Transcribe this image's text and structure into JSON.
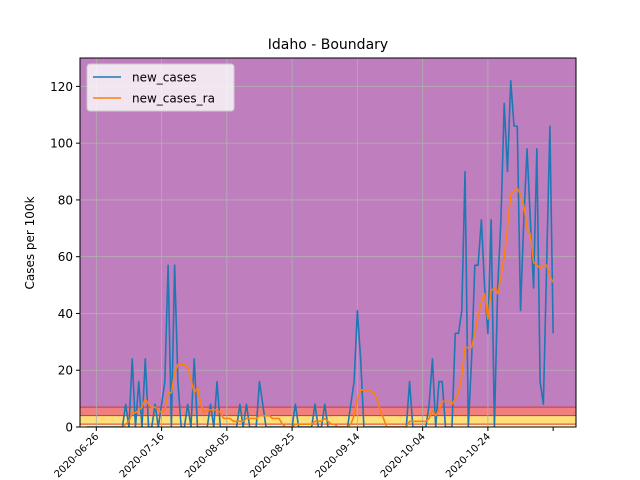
{
  "chart_data": {
    "type": "line",
    "title": "Idaho - Boundary",
    "xlabel": "",
    "ylabel": "Cases per 100k",
    "x_start": "2020-06-26",
    "x_ticks": [
      "2020-06-26",
      "2020-07-16",
      "2020-08-05",
      "2020-08-25",
      "2020-09-14",
      "2020-10-04",
      "2020-10-24"
    ],
    "ylim": [
      0,
      130
    ],
    "y_ticks": [
      0,
      20,
      40,
      60,
      80,
      100,
      120
    ],
    "grid": true,
    "legend_position": "top-left",
    "bands": [
      {
        "from": 0,
        "to": 1,
        "color": "#fffaaa"
      },
      {
        "from": 1,
        "to": 4,
        "color": "#fde07a"
      },
      {
        "from": 4,
        "to": 7,
        "color": "#f08080"
      },
      {
        "from": 7,
        "to": 130,
        "color": "#bf7fbf"
      }
    ],
    "band_line_color": "#e03030",
    "series": [
      {
        "name": "new_cases",
        "color": "#1f77b4",
        "points": [
          [
            "2020-06-23",
            0
          ],
          [
            "2020-06-30",
            0
          ],
          [
            "2020-07-01",
            0
          ],
          [
            "2020-07-02",
            0
          ],
          [
            "2020-07-03",
            0
          ],
          [
            "2020-07-04",
            0
          ],
          [
            "2020-07-05",
            8
          ],
          [
            "2020-07-06",
            0
          ],
          [
            "2020-07-07",
            24
          ],
          [
            "2020-07-08",
            0
          ],
          [
            "2020-07-09",
            16
          ],
          [
            "2020-07-10",
            0
          ],
          [
            "2020-07-11",
            24
          ],
          [
            "2020-07-12",
            0
          ],
          [
            "2020-07-13",
            0
          ],
          [
            "2020-07-14",
            8
          ],
          [
            "2020-07-15",
            0
          ],
          [
            "2020-07-16",
            8
          ],
          [
            "2020-07-17",
            16
          ],
          [
            "2020-07-18",
            57
          ],
          [
            "2020-07-19",
            0
          ],
          [
            "2020-07-20",
            57
          ],
          [
            "2020-07-21",
            16
          ],
          [
            "2020-07-22",
            0
          ],
          [
            "2020-07-23",
            0
          ],
          [
            "2020-07-24",
            8
          ],
          [
            "2020-07-25",
            0
          ],
          [
            "2020-07-26",
            24
          ],
          [
            "2020-07-27",
            0
          ],
          [
            "2020-07-28",
            0
          ],
          [
            "2020-07-29",
            0
          ],
          [
            "2020-07-30",
            0
          ],
          [
            "2020-07-31",
            8
          ],
          [
            "2020-08-01",
            0
          ],
          [
            "2020-08-02",
            16
          ],
          [
            "2020-08-03",
            0
          ],
          [
            "2020-08-04",
            0
          ],
          [
            "2020-08-05",
            0
          ],
          [
            "2020-08-06",
            0
          ],
          [
            "2020-08-07",
            0
          ],
          [
            "2020-08-08",
            0
          ],
          [
            "2020-08-09",
            8
          ],
          [
            "2020-08-10",
            0
          ],
          [
            "2020-08-11",
            8
          ],
          [
            "2020-08-12",
            0
          ],
          [
            "2020-08-13",
            0
          ],
          [
            "2020-08-14",
            0
          ],
          [
            "2020-08-15",
            16
          ],
          [
            "2020-08-16",
            8
          ],
          [
            "2020-08-17",
            0
          ],
          [
            "2020-08-18",
            0
          ],
          [
            "2020-08-19",
            0
          ],
          [
            "2020-08-20",
            0
          ],
          [
            "2020-08-21",
            0
          ],
          [
            "2020-08-22",
            0
          ],
          [
            "2020-08-23",
            0
          ],
          [
            "2020-08-24",
            0
          ],
          [
            "2020-08-25",
            0
          ],
          [
            "2020-08-26",
            8
          ],
          [
            "2020-08-27",
            0
          ],
          [
            "2020-08-28",
            0
          ],
          [
            "2020-08-29",
            0
          ],
          [
            "2020-08-30",
            0
          ],
          [
            "2020-08-31",
            0
          ],
          [
            "2020-09-01",
            8
          ],
          [
            "2020-09-02",
            0
          ],
          [
            "2020-09-03",
            0
          ],
          [
            "2020-09-04",
            8
          ],
          [
            "2020-09-05",
            0
          ],
          [
            "2020-09-06",
            0
          ],
          [
            "2020-09-07",
            0
          ],
          [
            "2020-09-08",
            0
          ],
          [
            "2020-09-09",
            0
          ],
          [
            "2020-09-10",
            0
          ],
          [
            "2020-09-11",
            0
          ],
          [
            "2020-09-12",
            8
          ],
          [
            "2020-09-13",
            16
          ],
          [
            "2020-09-14",
            41
          ],
          [
            "2020-09-15",
            24
          ],
          [
            "2020-09-16",
            0
          ],
          [
            "2020-09-17",
            0
          ],
          [
            "2020-09-18",
            0
          ],
          [
            "2020-09-19",
            0
          ],
          [
            "2020-09-20",
            0
          ],
          [
            "2020-09-21",
            0
          ],
          [
            "2020-09-22",
            0
          ],
          [
            "2020-09-23",
            0
          ],
          [
            "2020-09-24",
            0
          ],
          [
            "2020-09-25",
            0
          ],
          [
            "2020-09-26",
            0
          ],
          [
            "2020-09-27",
            0
          ],
          [
            "2020-09-28",
            0
          ],
          [
            "2020-09-29",
            0
          ],
          [
            "2020-09-30",
            16
          ],
          [
            "2020-10-01",
            0
          ],
          [
            "2020-10-02",
            0
          ],
          [
            "2020-10-03",
            0
          ],
          [
            "2020-10-04",
            0
          ],
          [
            "2020-10-05",
            0
          ],
          [
            "2020-10-06",
            8
          ],
          [
            "2020-10-07",
            24
          ],
          [
            "2020-10-08",
            0
          ],
          [
            "2020-10-09",
            16
          ],
          [
            "2020-10-10",
            16
          ],
          [
            "2020-10-11",
            0
          ],
          [
            "2020-10-12",
            0
          ],
          [
            "2020-10-13",
            0
          ],
          [
            "2020-10-14",
            33
          ],
          [
            "2020-10-15",
            33
          ],
          [
            "2020-10-16",
            41
          ],
          [
            "2020-10-17",
            90
          ],
          [
            "2020-10-18",
            0
          ],
          [
            "2020-10-19",
            24
          ],
          [
            "2020-10-20",
            57
          ],
          [
            "2020-10-21",
            57
          ],
          [
            "2020-10-22",
            73
          ],
          [
            "2020-10-23",
            49
          ],
          [
            "2020-10-24",
            33
          ],
          [
            "2020-10-25",
            73
          ],
          [
            "2020-10-26",
            0
          ],
          [
            "2020-10-27",
            49
          ],
          [
            "2020-10-28",
            73
          ],
          [
            "2020-10-29",
            114
          ],
          [
            "2020-10-30",
            90
          ],
          [
            "2020-10-31",
            122
          ],
          [
            "2020-11-01",
            106
          ],
          [
            "2020-11-02",
            106
          ],
          [
            "2020-11-03",
            41
          ],
          [
            "2020-11-04",
            73
          ],
          [
            "2020-11-05",
            98
          ],
          [
            "2020-11-06",
            73
          ],
          [
            "2020-11-07",
            49
          ],
          [
            "2020-11-08",
            98
          ],
          [
            "2020-11-09",
            16
          ],
          [
            "2020-11-10",
            8
          ],
          [
            "2020-11-11",
            57
          ],
          [
            "2020-11-12",
            106
          ],
          [
            "2020-11-13",
            33
          ]
        ]
      },
      {
        "name": "new_cases_ra",
        "color": "#ff7f0e",
        "points": [
          [
            "2020-07-03",
            0
          ],
          [
            "2020-07-04",
            0
          ],
          [
            "2020-07-05",
            1
          ],
          [
            "2020-07-06",
            2
          ],
          [
            "2020-07-07",
            5
          ],
          [
            "2020-07-08",
            5
          ],
          [
            "2020-07-09",
            6
          ],
          [
            "2020-07-10",
            7
          ],
          [
            "2020-07-11",
            10
          ],
          [
            "2020-07-12",
            8
          ],
          [
            "2020-07-13",
            7
          ],
          [
            "2020-07-14",
            7
          ],
          [
            "2020-07-15",
            6
          ],
          [
            "2020-07-16",
            5
          ],
          [
            "2020-07-17",
            6
          ],
          [
            "2020-07-18",
            12
          ],
          [
            "2020-07-19",
            12
          ],
          [
            "2020-07-20",
            19
          ],
          [
            "2020-07-21",
            22
          ],
          [
            "2020-07-22",
            22
          ],
          [
            "2020-07-23",
            22
          ],
          [
            "2020-07-24",
            21
          ],
          [
            "2020-07-25",
            17
          ],
          [
            "2020-07-26",
            12
          ],
          [
            "2020-07-27",
            14
          ],
          [
            "2020-07-28",
            8
          ],
          [
            "2020-07-29",
            5
          ],
          [
            "2020-07-30",
            6
          ],
          [
            "2020-07-31",
            6
          ],
          [
            "2020-08-01",
            6
          ],
          [
            "2020-08-02",
            6
          ],
          [
            "2020-08-03",
            5
          ],
          [
            "2020-08-04",
            3
          ],
          [
            "2020-08-05",
            3
          ],
          [
            "2020-08-06",
            3
          ],
          [
            "2020-08-07",
            2
          ],
          [
            "2020-08-08",
            2
          ],
          [
            "2020-08-09",
            2
          ],
          [
            "2020-08-10",
            2
          ],
          [
            "2020-08-11",
            3
          ],
          [
            "2020-08-12",
            3
          ],
          [
            "2020-08-13",
            3
          ],
          [
            "2020-08-14",
            3
          ],
          [
            "2020-08-15",
            4
          ],
          [
            "2020-08-16",
            4
          ],
          [
            "2020-08-17",
            4
          ],
          [
            "2020-08-18",
            4
          ],
          [
            "2020-08-19",
            3
          ],
          [
            "2020-08-20",
            3
          ],
          [
            "2020-08-21",
            3
          ],
          [
            "2020-08-22",
            1
          ],
          [
            "2020-08-23",
            0
          ],
          [
            "2020-08-24",
            0
          ],
          [
            "2020-08-25",
            0
          ],
          [
            "2020-08-26",
            1
          ],
          [
            "2020-08-27",
            1
          ],
          [
            "2020-08-28",
            1
          ],
          [
            "2020-08-29",
            1
          ],
          [
            "2020-08-30",
            1
          ],
          [
            "2020-08-31",
            1
          ],
          [
            "2020-09-01",
            2
          ],
          [
            "2020-09-02",
            2
          ],
          [
            "2020-09-03",
            2
          ],
          [
            "2020-09-04",
            3
          ],
          [
            "2020-09-05",
            2
          ],
          [
            "2020-09-06",
            1
          ],
          [
            "2020-09-07",
            1
          ],
          [
            "2020-09-08",
            0
          ],
          [
            "2020-09-09",
            0
          ],
          [
            "2020-09-10",
            0
          ],
          [
            "2020-09-11",
            0
          ],
          [
            "2020-09-12",
            1
          ],
          [
            "2020-09-13",
            4
          ],
          [
            "2020-09-14",
            10
          ],
          [
            "2020-09-15",
            13
          ],
          [
            "2020-09-16",
            13
          ],
          [
            "2020-09-17",
            13
          ],
          [
            "2020-09-18",
            13
          ],
          [
            "2020-09-19",
            12
          ],
          [
            "2020-09-20",
            10
          ],
          [
            "2020-09-21",
            6
          ],
          [
            "2020-09-22",
            3
          ],
          [
            "2020-09-23",
            0
          ],
          [
            "2020-09-24",
            0
          ],
          [
            "2020-09-25",
            0
          ],
          [
            "2020-09-26",
            0
          ],
          [
            "2020-09-27",
            0
          ],
          [
            "2020-09-28",
            0
          ],
          [
            "2020-09-29",
            0
          ],
          [
            "2020-09-30",
            2
          ],
          [
            "2020-10-01",
            2
          ],
          [
            "2020-10-02",
            2
          ],
          [
            "2020-10-03",
            2
          ],
          [
            "2020-10-04",
            2
          ],
          [
            "2020-10-05",
            2
          ],
          [
            "2020-10-06",
            3
          ],
          [
            "2020-10-07",
            6
          ],
          [
            "2020-10-08",
            4
          ],
          [
            "2020-10-09",
            6
          ],
          [
            "2020-10-10",
            9
          ],
          [
            "2020-10-11",
            9
          ],
          [
            "2020-10-12",
            9
          ],
          [
            "2020-10-13",
            8
          ],
          [
            "2020-10-14",
            10
          ],
          [
            "2020-10-15",
            12
          ],
          [
            "2020-10-16",
            18
          ],
          [
            "2020-10-17",
            28
          ],
          [
            "2020-10-18",
            28
          ],
          [
            "2020-10-19",
            28
          ],
          [
            "2020-10-20",
            33
          ],
          [
            "2020-10-21",
            39
          ],
          [
            "2020-10-22",
            44
          ],
          [
            "2020-10-23",
            47
          ],
          [
            "2020-10-24",
            38
          ],
          [
            "2020-10-25",
            48
          ],
          [
            "2020-10-26",
            49
          ],
          [
            "2020-10-27",
            47
          ],
          [
            "2020-10-28",
            53
          ],
          [
            "2020-10-29",
            60
          ],
          [
            "2020-10-30",
            70
          ],
          [
            "2020-10-31",
            82
          ],
          [
            "2020-11-01",
            83
          ],
          [
            "2020-11-02",
            84
          ],
          [
            "2020-11-03",
            82
          ],
          [
            "2020-11-04",
            78
          ],
          [
            "2020-11-05",
            70
          ],
          [
            "2020-11-06",
            68
          ],
          [
            "2020-11-07",
            58
          ],
          [
            "2020-11-08",
            57
          ],
          [
            "2020-11-09",
            56
          ],
          [
            "2020-11-10",
            57
          ],
          [
            "2020-11-11",
            57
          ],
          [
            "2020-11-12",
            53
          ],
          [
            "2020-11-13",
            51
          ]
        ]
      }
    ]
  }
}
